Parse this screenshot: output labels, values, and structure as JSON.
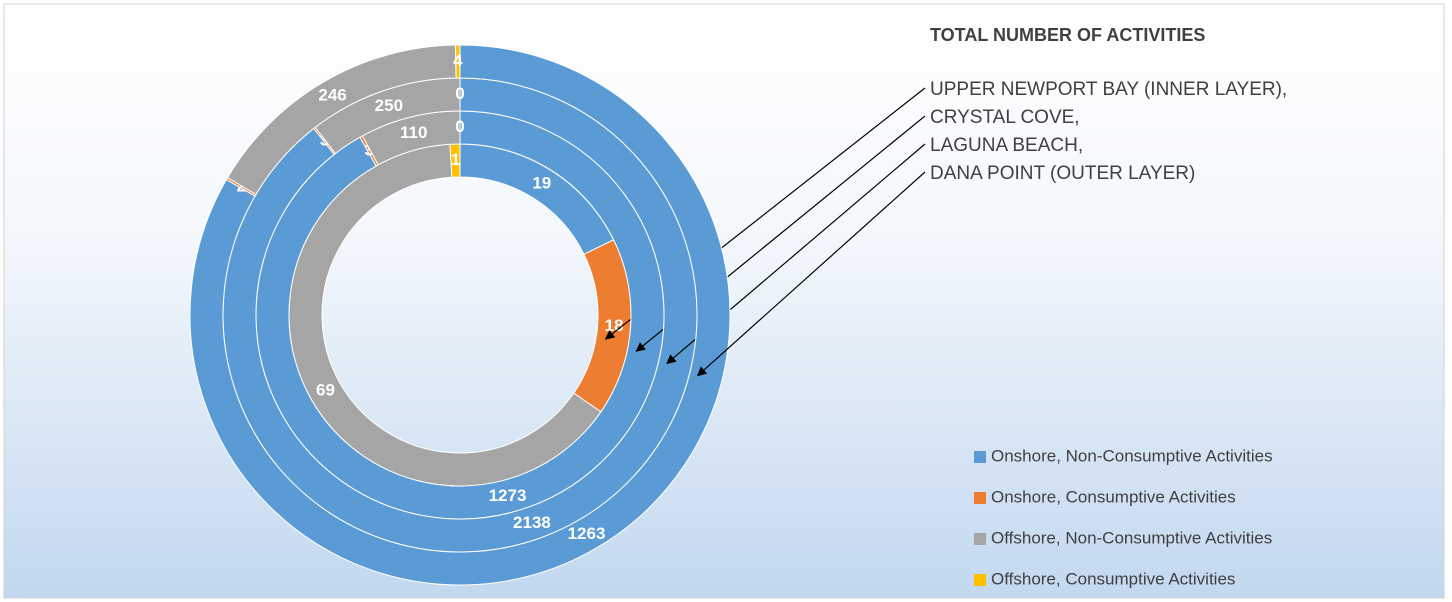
{
  "chart_data": {
    "type": "doughnut",
    "title": "TOTAL NUMBER OF ACTIVITIES",
    "categories": [
      "Onshore, Non-Consumptive Activities",
      "Onshore, Consumptive Activities",
      "Offshore, Non-Consumptive Activities",
      "Offshore, Consumptive Activities"
    ],
    "colors": [
      "#5b9bd5",
      "#ed7d31",
      "#a5a5a5",
      "#ffc000"
    ],
    "series": [
      {
        "name": "UPPER NEWPORT BAY (INNER LAYER),",
        "values": [
          19,
          18,
          69,
          1
        ]
      },
      {
        "name": "CRYSTAL COVE,",
        "values": [
          1273,
          3,
          110,
          0
        ]
      },
      {
        "name": "LAGUNA BEACH,",
        "values": [
          2138,
          3,
          250,
          0
        ]
      },
      {
        "name": "DANA POINT (OUTER LAYER)",
        "values": [
          1263,
          2,
          246,
          4
        ]
      }
    ],
    "legend": "bottom-right"
  }
}
